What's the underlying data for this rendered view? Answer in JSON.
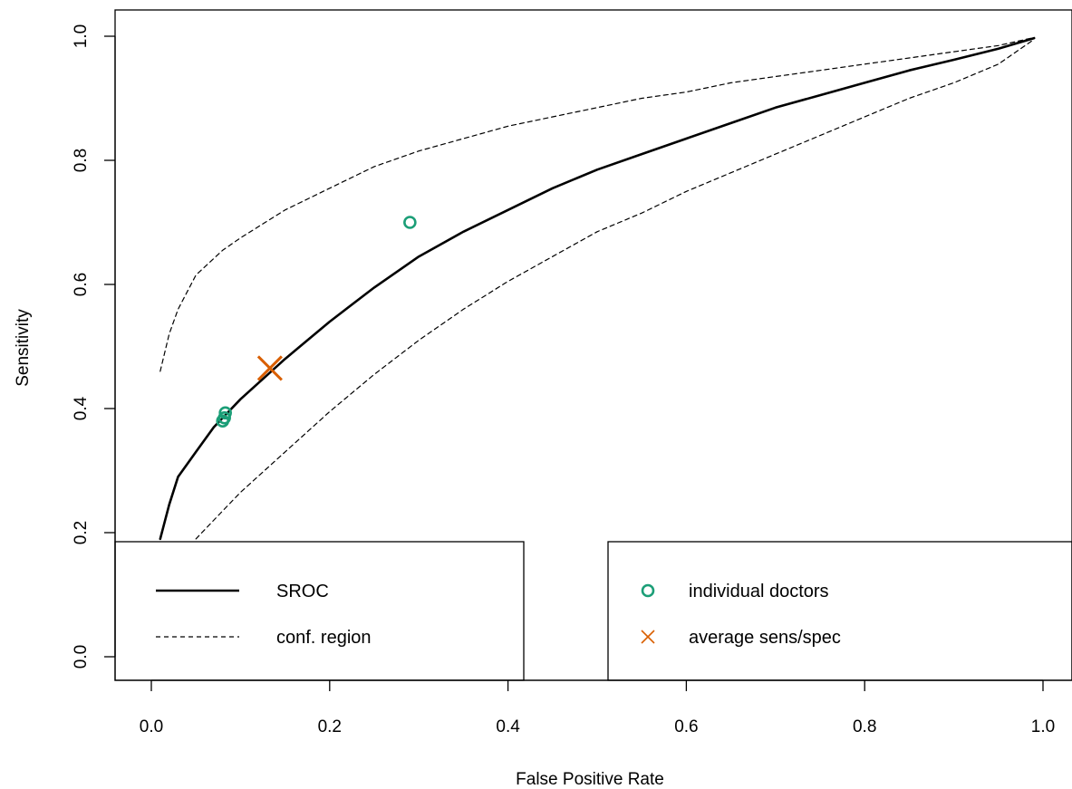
{
  "chart_data": {
    "type": "scatter",
    "title": "",
    "xlabel": "False Positive Rate",
    "ylabel": "Sensitivity",
    "xlim": [
      0.0,
      1.0
    ],
    "ylim": [
      0.0,
      1.0
    ],
    "x_ticks": [
      0.0,
      0.2,
      0.4,
      0.6,
      0.8,
      1.0
    ],
    "y_ticks": [
      0.0,
      0.2,
      0.4,
      0.6,
      0.8,
      1.0
    ],
    "x_tick_labels": [
      "0.0",
      "0.2",
      "0.4",
      "0.6",
      "0.8",
      "1.0"
    ],
    "y_tick_labels": [
      "0.0",
      "0.2",
      "0.4",
      "0.6",
      "0.8",
      "1.0"
    ],
    "grid": false,
    "series": [
      {
        "name": "SROC",
        "kind": "line",
        "style": "solid",
        "color": "#000000",
        "points": [
          [
            0.01,
            0.19
          ],
          [
            0.02,
            0.245
          ],
          [
            0.03,
            0.29
          ],
          [
            0.05,
            0.33
          ],
          [
            0.07,
            0.37
          ],
          [
            0.1,
            0.415
          ],
          [
            0.15,
            0.48
          ],
          [
            0.2,
            0.54
          ],
          [
            0.25,
            0.595
          ],
          [
            0.3,
            0.645
          ],
          [
            0.35,
            0.685
          ],
          [
            0.4,
            0.72
          ],
          [
            0.45,
            0.755
          ],
          [
            0.5,
            0.785
          ],
          [
            0.55,
            0.81
          ],
          [
            0.6,
            0.835
          ],
          [
            0.65,
            0.86
          ],
          [
            0.7,
            0.885
          ],
          [
            0.75,
            0.905
          ],
          [
            0.8,
            0.925
          ],
          [
            0.85,
            0.945
          ],
          [
            0.9,
            0.962
          ],
          [
            0.95,
            0.98
          ],
          [
            0.99,
            0.997
          ]
        ]
      },
      {
        "name": "conf. region",
        "kind": "line",
        "style": "dashed",
        "color": "#000000",
        "points": [
          [
            0.01,
            0.46
          ],
          [
            0.02,
            0.52
          ],
          [
            0.03,
            0.56
          ],
          [
            0.05,
            0.615
          ],
          [
            0.08,
            0.655
          ],
          [
            0.1,
            0.675
          ],
          [
            0.15,
            0.72
          ],
          [
            0.2,
            0.755
          ],
          [
            0.25,
            0.79
          ],
          [
            0.3,
            0.815
          ],
          [
            0.35,
            0.835
          ],
          [
            0.4,
            0.855
          ],
          [
            0.45,
            0.87
          ],
          [
            0.5,
            0.885
          ],
          [
            0.55,
            0.9
          ],
          [
            0.6,
            0.91
          ],
          [
            0.65,
            0.925
          ],
          [
            0.7,
            0.935
          ],
          [
            0.75,
            0.945
          ],
          [
            0.8,
            0.955
          ],
          [
            0.85,
            0.965
          ],
          [
            0.9,
            0.975
          ],
          [
            0.95,
            0.985
          ],
          [
            0.99,
            0.998
          ]
        ]
      },
      {
        "name": "",
        "kind": "line",
        "style": "dashed",
        "color": "#000000",
        "points": [
          [
            0.05,
            0.19
          ],
          [
            0.08,
            0.235
          ],
          [
            0.1,
            0.265
          ],
          [
            0.15,
            0.33
          ],
          [
            0.2,
            0.395
          ],
          [
            0.25,
            0.455
          ],
          [
            0.3,
            0.51
          ],
          [
            0.35,
            0.56
          ],
          [
            0.4,
            0.605
          ],
          [
            0.45,
            0.645
          ],
          [
            0.5,
            0.685
          ],
          [
            0.55,
            0.715
          ],
          [
            0.6,
            0.75
          ],
          [
            0.65,
            0.78
          ],
          [
            0.7,
            0.81
          ],
          [
            0.75,
            0.84
          ],
          [
            0.8,
            0.87
          ],
          [
            0.85,
            0.9
          ],
          [
            0.9,
            0.925
          ],
          [
            0.95,
            0.955
          ],
          [
            0.99,
            0.995
          ]
        ]
      },
      {
        "name": "individual doctors",
        "kind": "points",
        "marker": "circle",
        "color": "#1b9e77",
        "points": [
          [
            0.08,
            0.38
          ],
          [
            0.082,
            0.385
          ],
          [
            0.083,
            0.393
          ],
          [
            0.29,
            0.7
          ]
        ]
      },
      {
        "name": "average sens/spec",
        "kind": "points",
        "marker": "cross",
        "color": "#d95f02",
        "points": [
          [
            0.133,
            0.465
          ]
        ]
      }
    ],
    "legends": [
      {
        "position": "bottom-left",
        "entries": [
          {
            "label": "SROC",
            "symbol": "solid-line"
          },
          {
            "label": "conf. region",
            "symbol": "dashed-line"
          }
        ]
      },
      {
        "position": "bottom-right",
        "entries": [
          {
            "label": "individual doctors",
            "symbol": "circle"
          },
          {
            "label": "average sens/spec",
            "symbol": "cross"
          }
        ]
      }
    ]
  }
}
